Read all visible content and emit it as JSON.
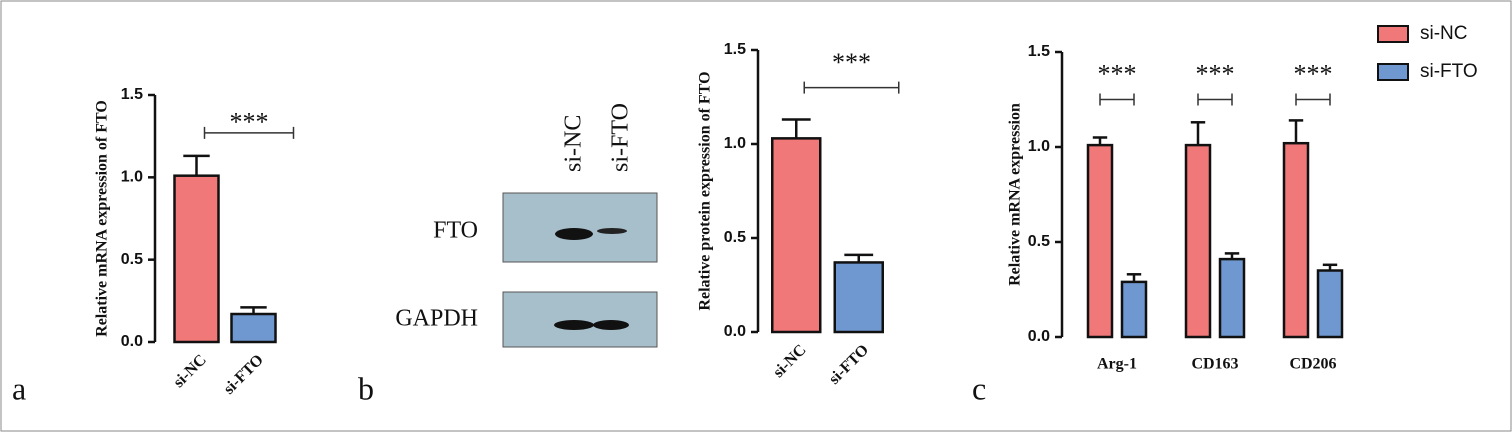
{
  "panel_labels": [
    "a",
    "b",
    "c"
  ],
  "blot": {
    "lanes": [
      "si-NC",
      "si-FTO"
    ],
    "bands": [
      "FTO",
      "GAPDH"
    ]
  },
  "chart_data": [
    {
      "type": "bar",
      "ylabel": "Relative mRNA expression of FTO",
      "categories": [
        "si-NC",
        "si-FTO"
      ],
      "values": [
        1.01,
        0.17
      ],
      "errors": [
        0.12,
        0.04
      ],
      "colors": [
        "#f07878",
        "#6f97d0"
      ],
      "annotation": "***",
      "ylim": [
        0,
        1.5
      ],
      "yticks": [
        {
          "value": 0,
          "label": "0.0"
        },
        {
          "value": 0.5,
          "label": "0.5"
        },
        {
          "value": 1,
          "label": "1.0"
        },
        {
          "value": 1.5,
          "label": "1.5"
        }
      ]
    },
    {
      "type": "bar",
      "ylabel": "Relative protein expression of FTO",
      "categories": [
        "si-NC",
        "si-FTO"
      ],
      "values": [
        1.03,
        0.37
      ],
      "errors": [
        0.1,
        0.04
      ],
      "colors": [
        "#f07878",
        "#6f97d0"
      ],
      "annotation": "***",
      "ylim": [
        0,
        1.5
      ],
      "yticks": [
        {
          "value": 0,
          "label": "0.0"
        },
        {
          "value": 0.5,
          "label": "0.5"
        },
        {
          "value": 1,
          "label": "1.0"
        },
        {
          "value": 1.5,
          "label": "1.5"
        }
      ]
    },
    {
      "type": "grouped_bar",
      "ylabel": "Relative mRNA expression",
      "categories": [
        "Arg-1",
        "CD163",
        "CD206"
      ],
      "series": [
        {
          "name": "si-NC",
          "color": "#f07878",
          "values": [
            1.01,
            1.01,
            1.02
          ],
          "errors": [
            0.04,
            0.12,
            0.12
          ]
        },
        {
          "name": "si-FTO",
          "color": "#6f97d0",
          "values": [
            0.29,
            0.41,
            0.35
          ],
          "errors": [
            0.04,
            0.03,
            0.03
          ]
        }
      ],
      "annotations": [
        "***",
        "***",
        "***"
      ],
      "legend": "top-right",
      "ylim": [
        0,
        1.5
      ],
      "yticks": [
        {
          "value": 0,
          "label": "0.0"
        },
        {
          "value": 0.5,
          "label": "0.5"
        },
        {
          "value": 1,
          "label": "1.0"
        },
        {
          "value": 1.5,
          "label": "1.5"
        }
      ]
    }
  ]
}
